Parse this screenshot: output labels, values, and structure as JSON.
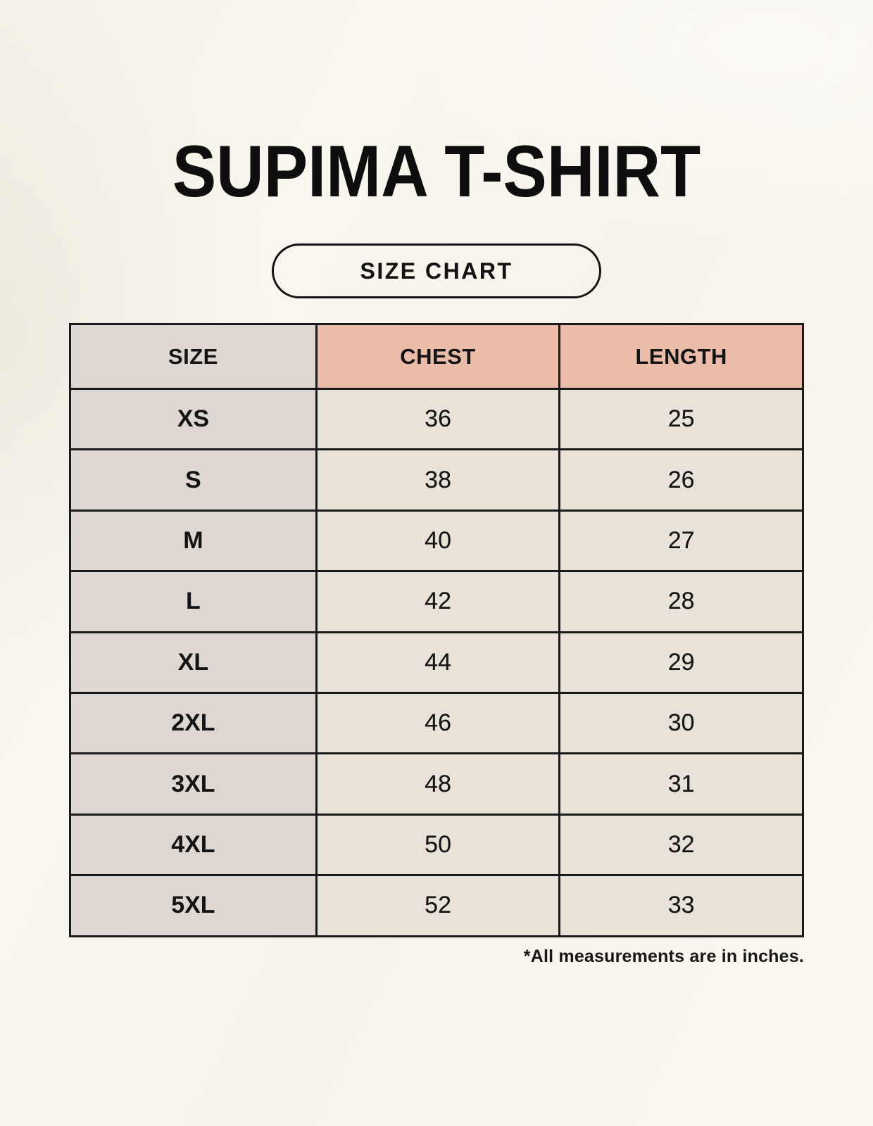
{
  "colors": {
    "background": "#f8f5ee",
    "header_accent": "#ecbcab",
    "size_column": "#ded7d2",
    "value_cell": "#e9e2d8",
    "border": "#1a1a1a",
    "text": "#141414"
  },
  "header": {
    "title": "SUPIMA T-SHIRT",
    "badge_label": "SIZE CHART"
  },
  "footnote": "*All measurements are in inches.",
  "chart_data": {
    "type": "table",
    "title": "SUPIMA T-SHIRT",
    "subtitle": "SIZE CHART",
    "columns": [
      "SIZE",
      "CHEST",
      "LENGTH"
    ],
    "rows": [
      [
        "XS",
        "36",
        "25"
      ],
      [
        "S",
        "38",
        "26"
      ],
      [
        "M",
        "40",
        "27"
      ],
      [
        "L",
        "42",
        "28"
      ],
      [
        "XL",
        "44",
        "29"
      ],
      [
        "2XL",
        "46",
        "30"
      ],
      [
        "3XL",
        "48",
        "31"
      ],
      [
        "4XL",
        "50",
        "32"
      ],
      [
        "5XL",
        "52",
        "33"
      ]
    ],
    "units_note": "*All measurements are in inches.",
    "layout": {
      "header_fill": "salmon on CHEST/LENGTH, warm gray on SIZE",
      "grid": "on",
      "borders": "black 3px, collapsed"
    }
  }
}
